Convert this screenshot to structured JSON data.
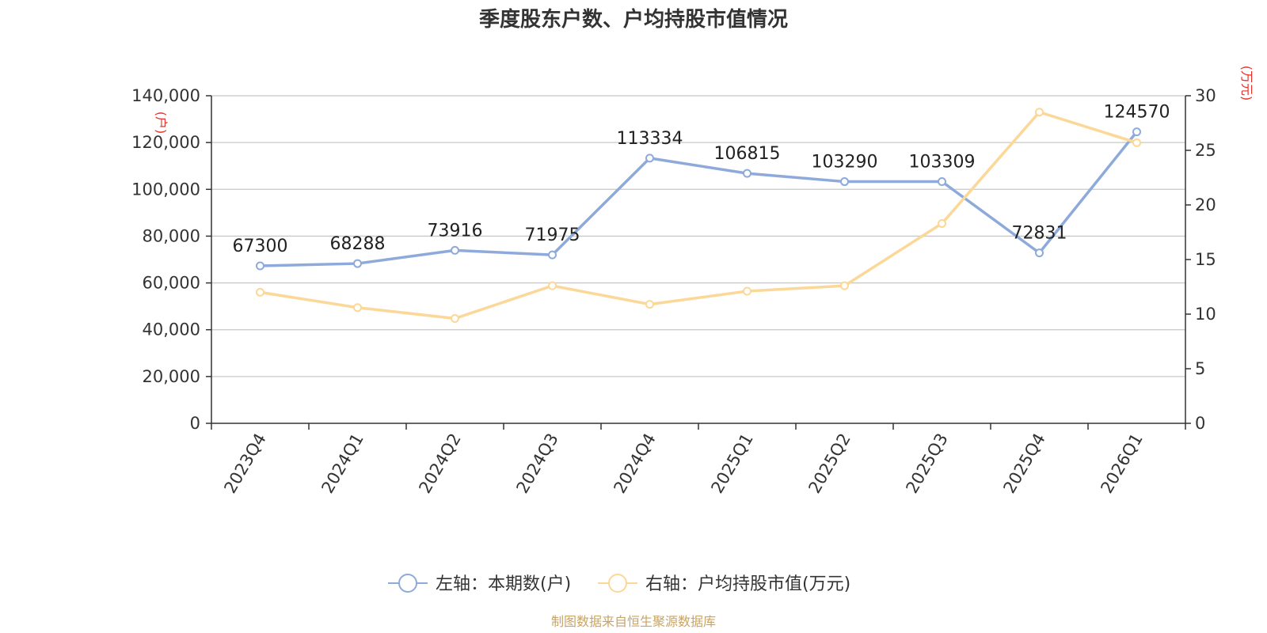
{
  "chart_data": {
    "type": "line",
    "title": "季度股东户数、户均持股市值情况",
    "categories": [
      "2023Q4",
      "2024Q1",
      "2024Q2",
      "2024Q3",
      "2024Q4",
      "2025Q1",
      "2025Q2",
      "2025Q3",
      "2025Q4",
      "2026Q1"
    ],
    "left_axis": {
      "unit": "(户)",
      "min": 0,
      "max": 140000,
      "ticks": [
        "0",
        "20,000",
        "40,000",
        "60,000",
        "80,000",
        "100,000",
        "120,000",
        "140,000"
      ]
    },
    "right_axis": {
      "unit": "(万元)",
      "min": 0,
      "max": 30,
      "ticks": [
        "0",
        "5",
        "10",
        "15",
        "20",
        "25",
        "30"
      ]
    },
    "grid": true,
    "legend_position": "bottom",
    "series": [
      {
        "name": "左轴：本期数(户)",
        "axis": "left",
        "color": "#8eaadb",
        "values": [
          67300,
          68288,
          73916,
          71975,
          113334,
          106815,
          103290,
          103309,
          72831,
          124570
        ],
        "labels": [
          "67300",
          "68288",
          "73916",
          "71975",
          "113334",
          "106815",
          "103290",
          "103309",
          "72831",
          "124570"
        ]
      },
      {
        "name": "右轴：户均持股市值(万元)",
        "axis": "right",
        "color": "#fcd898",
        "values": [
          12.0,
          10.6,
          9.6,
          12.6,
          10.9,
          12.1,
          12.6,
          18.3,
          28.5,
          25.7
        ]
      }
    ],
    "source": "制图数据来自恒生聚源数据库"
  }
}
